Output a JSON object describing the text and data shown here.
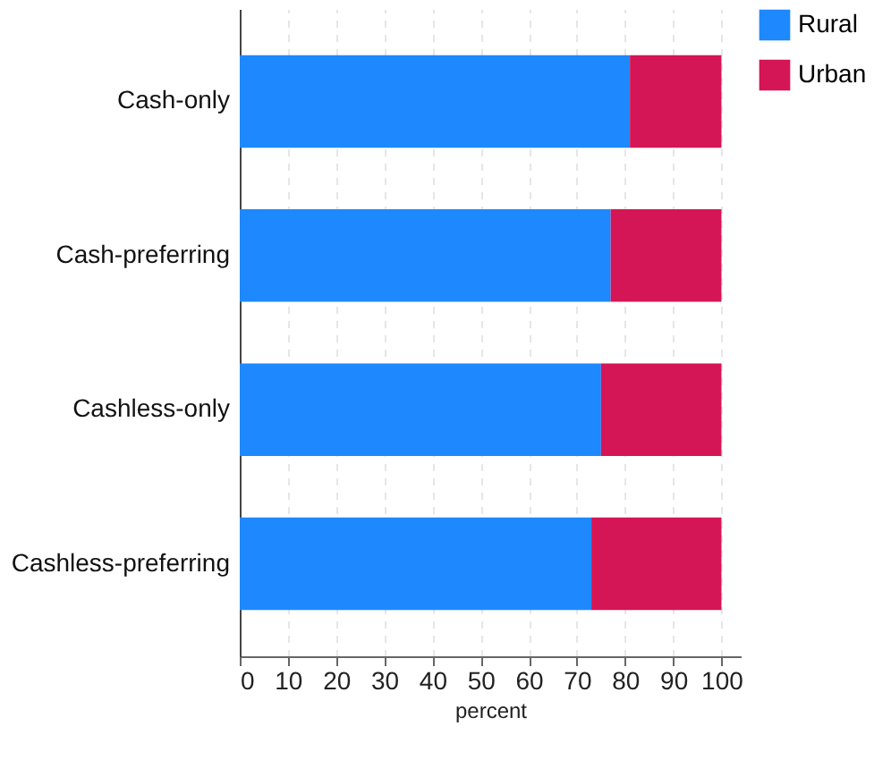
{
  "chart_data": {
    "type": "bar",
    "orientation": "horizontal",
    "stacked": true,
    "xlabel": "percent",
    "categories": [
      "Cash-only",
      "Cash-preferring",
      "Cashless-only",
      "Cashless-preferring"
    ],
    "series": [
      {
        "name": "Rural",
        "color": "#1e88ff",
        "values": [
          81,
          77,
          75,
          73
        ]
      },
      {
        "name": "Urban",
        "color": "#d41556",
        "values": [
          19,
          23,
          25,
          27
        ]
      }
    ],
    "xlim": [
      0,
      104
    ],
    "xticks": [
      0,
      10,
      20,
      30,
      40,
      50,
      60,
      70,
      80,
      90,
      100
    ],
    "grid": "x",
    "legend": "right"
  }
}
